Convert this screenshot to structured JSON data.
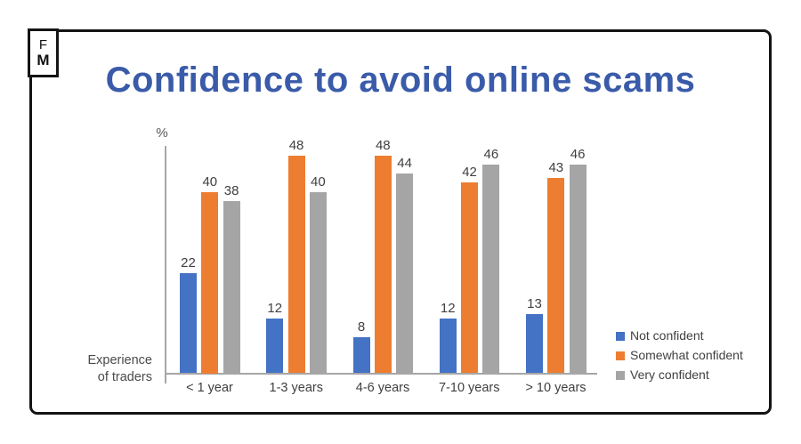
{
  "logo": {
    "top": "F",
    "bottom": "M"
  },
  "chart_data": {
    "type": "bar",
    "title": "Confidence to avoid online scams",
    "title_color": "#3A5BA9",
    "unit_label": "%",
    "xlabel_lines": [
      "Experience",
      "of traders"
    ],
    "categories": [
      "< 1 year",
      "1-3 years",
      "4-6 years",
      "7-10 years",
      "> 10 years"
    ],
    "series": [
      {
        "name": "Not confident",
        "color": "#4472C4",
        "values": [
          22,
          12,
          8,
          12,
          13
        ]
      },
      {
        "name": "Somewhat confident",
        "color": "#ED7D31",
        "values": [
          40,
          48,
          48,
          42,
          43
        ]
      },
      {
        "name": "Very confident",
        "color": "#A5A5A5",
        "values": [
          38,
          40,
          44,
          46,
          46
        ]
      }
    ],
    "ylim": [
      0,
      50
    ],
    "grid": false,
    "data_labels": true,
    "legend_position": "bottom-right",
    "axis_color": "#A6A6A6"
  }
}
